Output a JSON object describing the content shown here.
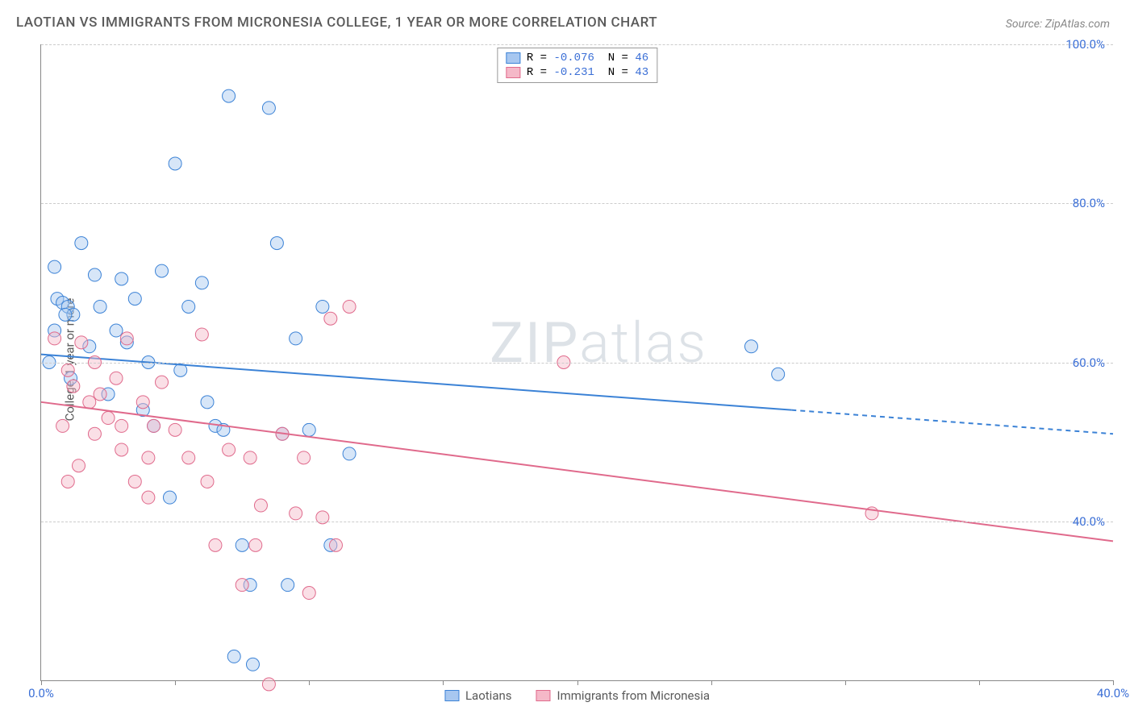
{
  "title": "LAOTIAN VS IMMIGRANTS FROM MICRONESIA COLLEGE, 1 YEAR OR MORE CORRELATION CHART",
  "source": "Source: ZipAtlas.com",
  "watermark": "ZIPatlas",
  "yaxis_label": "College, 1 year or more",
  "chart": {
    "type": "scatter",
    "xlim": [
      0,
      40
    ],
    "ylim": [
      20,
      100
    ],
    "xtick_step": 5,
    "xtick_labels": {
      "0": "0.0%",
      "40": "40.0%"
    },
    "ytick_step": 20,
    "ytick_labels": {
      "40": "40.0%",
      "60": "60.0%",
      "80": "80.0%",
      "100": "100.0%"
    },
    "grid_color": "#cccccc",
    "background": "#ffffff",
    "axis_color": "#888888",
    "label_color": "#3b6fd6",
    "title_color": "#5a5a5a",
    "title_fontsize": 17,
    "tick_fontsize": 15,
    "marker_radius": 8,
    "marker_opacity": 0.45,
    "line_width": 2,
    "series": [
      {
        "name": "Laotians",
        "color_fill": "#a7c7f0",
        "color_stroke": "#3b82d6",
        "r": "-0.076",
        "n": "46",
        "trend": {
          "x1": 0,
          "y1": 61,
          "x2": 40,
          "y2": 51,
          "solid_until": 28
        },
        "points": [
          [
            0.5,
            72
          ],
          [
            0.6,
            68
          ],
          [
            0.8,
            67.5
          ],
          [
            1.0,
            67
          ],
          [
            1.2,
            66
          ],
          [
            0.3,
            60
          ],
          [
            0.5,
            64
          ],
          [
            1.5,
            75
          ],
          [
            2.0,
            71
          ],
          [
            2.2,
            67
          ],
          [
            3.0,
            70.5
          ],
          [
            3.5,
            68
          ],
          [
            3.2,
            62.5
          ],
          [
            4.0,
            60
          ],
          [
            4.5,
            71.5
          ],
          [
            5.0,
            85
          ],
          [
            5.2,
            59
          ],
          [
            5.5,
            67
          ],
          [
            6.0,
            70
          ],
          [
            6.2,
            55
          ],
          [
            6.5,
            52
          ],
          [
            6.8,
            51.5
          ],
          [
            7.0,
            93.5
          ],
          [
            7.2,
            23
          ],
          [
            7.5,
            37
          ],
          [
            7.8,
            32
          ],
          [
            7.9,
            22
          ],
          [
            8.5,
            92
          ],
          [
            8.8,
            75
          ],
          [
            9.0,
            51
          ],
          [
            9.2,
            32
          ],
          [
            9.5,
            63
          ],
          [
            10.0,
            51.5
          ],
          [
            10.5,
            67
          ],
          [
            10.8,
            37
          ],
          [
            11.5,
            48.5
          ],
          [
            3.8,
            54
          ],
          [
            4.2,
            52
          ],
          [
            1.8,
            62
          ],
          [
            2.5,
            56
          ],
          [
            0.9,
            66
          ],
          [
            1.1,
            58
          ],
          [
            2.8,
            64
          ],
          [
            26.5,
            62
          ],
          [
            27.5,
            58.5
          ],
          [
            4.8,
            43
          ]
        ]
      },
      {
        "name": "Immigrants from Micronesia",
        "color_fill": "#f5b8c8",
        "color_stroke": "#e06a8c",
        "r": "-0.231",
        "n": "43",
        "trend": {
          "x1": 0,
          "y1": 55,
          "x2": 40,
          "y2": 37.5,
          "solid_until": 40
        },
        "points": [
          [
            0.5,
            63
          ],
          [
            1.0,
            59
          ],
          [
            1.2,
            57
          ],
          [
            1.5,
            62.5
          ],
          [
            1.8,
            55
          ],
          [
            2.0,
            51
          ],
          [
            2.2,
            56
          ],
          [
            2.5,
            53
          ],
          [
            2.8,
            58
          ],
          [
            3.0,
            49
          ],
          [
            3.2,
            63
          ],
          [
            3.5,
            45
          ],
          [
            3.8,
            55
          ],
          [
            4.0,
            48
          ],
          [
            4.2,
            52
          ],
          [
            4.5,
            57.5
          ],
          [
            5.0,
            51.5
          ],
          [
            5.5,
            48
          ],
          [
            6.0,
            63.5
          ],
          [
            6.2,
            45
          ],
          [
            6.5,
            37
          ],
          [
            7.0,
            49
          ],
          [
            7.5,
            32
          ],
          [
            7.8,
            48
          ],
          [
            8.0,
            37
          ],
          [
            8.2,
            42
          ],
          [
            8.5,
            19.5
          ],
          [
            9.0,
            51
          ],
          [
            9.5,
            41
          ],
          [
            9.8,
            48
          ],
          [
            10.0,
            31
          ],
          [
            10.5,
            40.5
          ],
          [
            11.0,
            37
          ],
          [
            10.8,
            65.5
          ],
          [
            11.5,
            67
          ],
          [
            1.0,
            45
          ],
          [
            2.0,
            60
          ],
          [
            3.0,
            52
          ],
          [
            4.0,
            43
          ],
          [
            19.5,
            60
          ],
          [
            31.0,
            41
          ],
          [
            0.8,
            52
          ],
          [
            1.4,
            47
          ]
        ]
      }
    ]
  },
  "legend_bottom": {
    "a": "Laotians",
    "b": "Immigrants from Micronesia"
  }
}
